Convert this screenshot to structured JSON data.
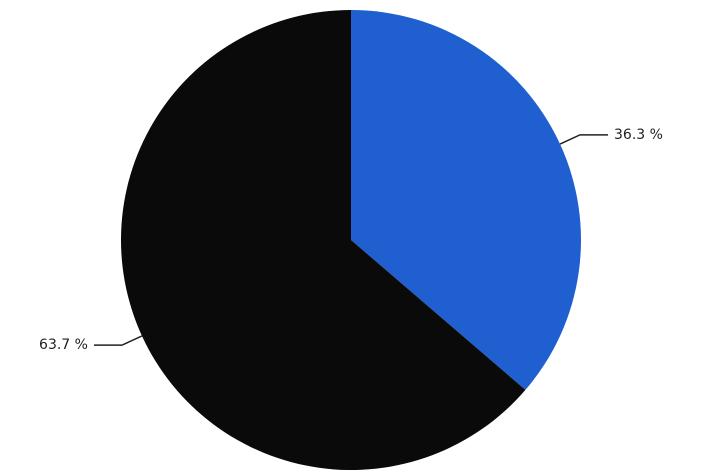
{
  "chart_data": {
    "type": "pie",
    "values": [
      36.3,
      63.7
    ],
    "value_labels": [
      "36.3 %",
      "63.7 %"
    ],
    "colors": [
      "#1f5fd0",
      "#0a0a0a"
    ]
  }
}
